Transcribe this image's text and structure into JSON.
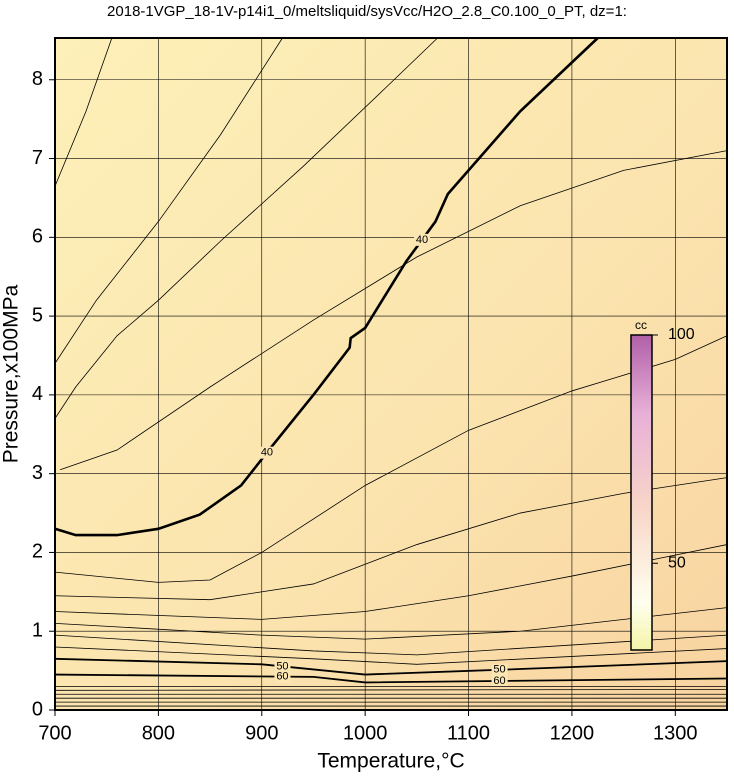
{
  "chart_data": {
    "type": "contour",
    "title": "2018-1VGP_18-1V-p14i1_0/meltsliquid/sysVcc/H2O_2.8_C0.100_0_PT, dz=1:",
    "x_label": "Temperature,°C",
    "y_label": "Pressure,x100MPa",
    "xlim": [
      700,
      1350
    ],
    "ylim": [
      0,
      8.53
    ],
    "xticks": [
      700,
      800,
      900,
      1000,
      1100,
      1200,
      1300
    ],
    "yticks": [
      0,
      1,
      2,
      3,
      4,
      5,
      6,
      7,
      8
    ],
    "grid": true,
    "line_color": "#000000",
    "contours": [
      {
        "level": 40,
        "x": [
          700,
          720,
          760,
          800,
          840,
          880,
          910,
          950,
          985,
          986,
          1000,
          1040,
          1068,
          1080,
          1150,
          1225
        ],
        "y": [
          2.3,
          2.22,
          2.22,
          2.3,
          2.48,
          2.85,
          3.35,
          4.0,
          4.6,
          4.72,
          4.85,
          5.7,
          6.2,
          6.55,
          7.6,
          8.53
        ]
      },
      {
        "level": 50,
        "x": [
          700,
          900,
          1000,
          1150,
          1350
        ],
        "y": [
          0.65,
          0.58,
          0.45,
          0.52,
          0.62
        ]
      },
      {
        "level": 60,
        "x": [
          700,
          950,
          1000,
          1350
        ],
        "y": [
          0.45,
          0.42,
          0.35,
          0.4
        ]
      },
      {
        "x": [
          700,
          730,
          755
        ],
        "y": [
          6.65,
          7.6,
          8.53
        ]
      },
      {
        "x": [
          700,
          740,
          800,
          860,
          920
        ],
        "y": [
          4.4,
          5.2,
          6.2,
          7.3,
          8.53
        ]
      },
      {
        "x": [
          700,
          720,
          760,
          800,
          860,
          940,
          1020,
          1070
        ],
        "y": [
          3.7,
          4.1,
          4.75,
          5.2,
          5.95,
          6.9,
          7.9,
          8.53
        ]
      },
      {
        "x": [
          705,
          760,
          850,
          950,
          1050,
          1150,
          1250,
          1350
        ],
        "y": [
          3.05,
          3.3,
          4.1,
          4.95,
          5.75,
          6.4,
          6.85,
          7.1
        ]
      },
      {
        "x": [
          700,
          800,
          850,
          900,
          1000,
          1100,
          1200,
          1300,
          1350
        ],
        "y": [
          1.75,
          1.62,
          1.65,
          2.0,
          2.85,
          3.55,
          4.05,
          4.45,
          4.75
        ]
      },
      {
        "x": [
          700,
          850,
          950,
          1050,
          1150,
          1250,
          1350
        ],
        "y": [
          1.45,
          1.4,
          1.6,
          2.1,
          2.5,
          2.75,
          2.95
        ]
      },
      {
        "x": [
          700,
          900,
          1000,
          1100,
          1200,
          1350
        ],
        "y": [
          1.25,
          1.15,
          1.25,
          1.45,
          1.7,
          2.1
        ]
      },
      {
        "x": [
          700,
          900,
          1000,
          1150,
          1350
        ],
        "y": [
          1.1,
          0.95,
          0.9,
          1.0,
          1.3
        ]
      },
      {
        "x": [
          700,
          950,
          1050,
          1350
        ],
        "y": [
          0.95,
          0.75,
          0.7,
          0.95
        ]
      },
      {
        "x": [
          700,
          950,
          1050,
          1350
        ],
        "y": [
          0.8,
          0.65,
          0.58,
          0.78
        ]
      },
      {
        "x": [
          700,
          1350
        ],
        "y": [
          0.3,
          0.3
        ]
      },
      {
        "x": [
          700,
          1350
        ],
        "y": [
          0.25,
          0.26
        ]
      },
      {
        "x": [
          700,
          1350
        ],
        "y": [
          0.2,
          0.2
        ]
      },
      {
        "x": [
          700,
          1350
        ],
        "y": [
          0.15,
          0.15
        ]
      },
      {
        "x": [
          700,
          1350
        ],
        "y": [
          0.1,
          0.1
        ]
      },
      {
        "x": [
          700,
          1350
        ],
        "y": [
          0.05,
          0.05
        ]
      }
    ],
    "colorbar": {
      "label": "cc",
      "lim": [
        31,
        100
      ],
      "ticks": [
        50,
        100
      ]
    }
  }
}
